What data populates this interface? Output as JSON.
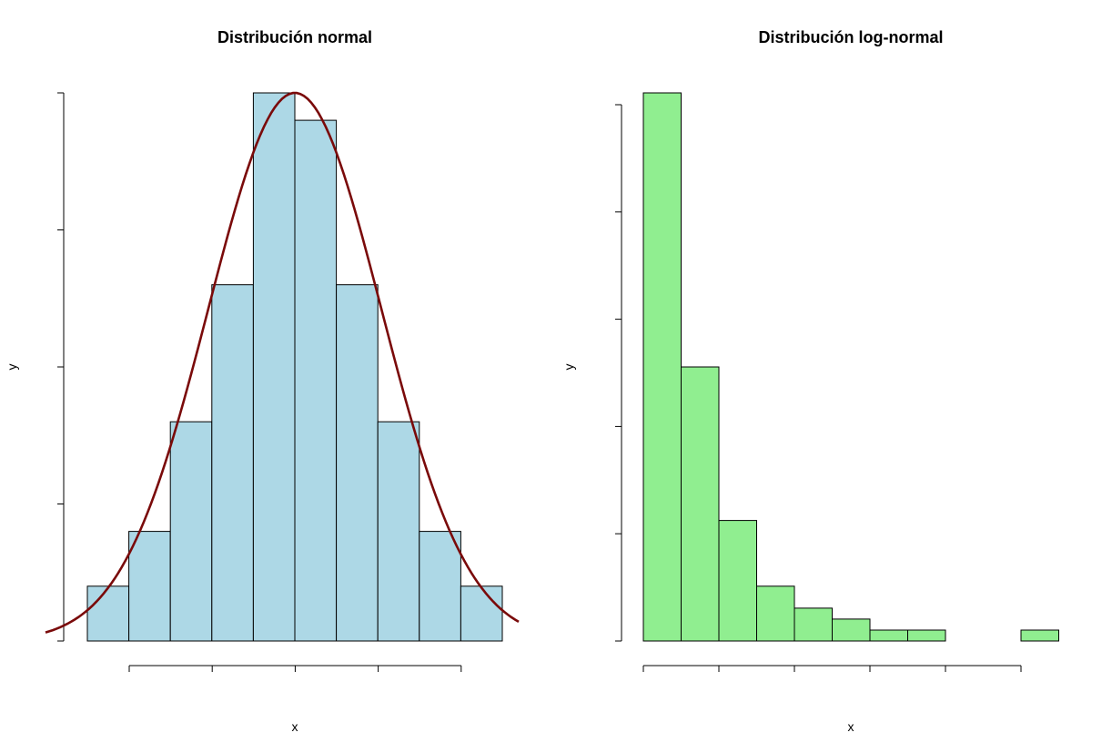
{
  "chart_data": [
    {
      "type": "bar",
      "title": "Distribución normal",
      "xlabel": "x",
      "ylabel": "y",
      "bar_color": "#add8e6",
      "curve_color": "#7a0a0a",
      "bins": 10,
      "relative_heights": [
        0.1,
        0.2,
        0.4,
        0.65,
        1.0,
        0.95,
        0.65,
        0.4,
        0.2,
        0.1
      ],
      "overlay": "normal density curve",
      "ytick_count": 5,
      "xtick_count": 5
    },
    {
      "type": "bar",
      "title": "Distribución log-normal",
      "xlabel": "x",
      "ylabel": "y",
      "bar_color": "#90ee90",
      "bins": 11,
      "relative_heights": [
        1.0,
        0.5,
        0.22,
        0.1,
        0.06,
        0.04,
        0.02,
        0.02,
        0.0,
        0.0,
        0.02
      ],
      "ytick_count": 6,
      "xtick_count": 6
    }
  ]
}
